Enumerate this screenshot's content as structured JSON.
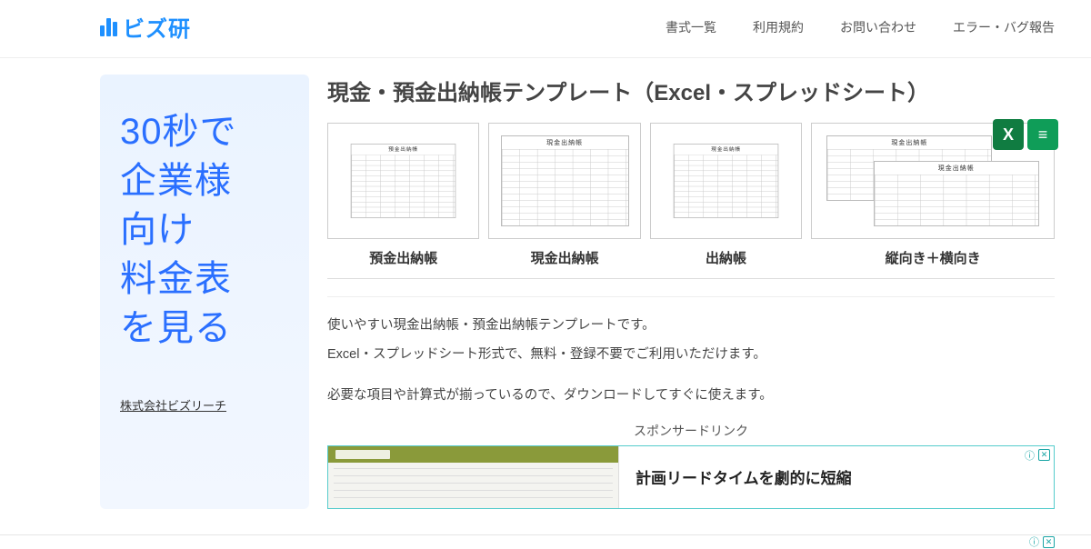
{
  "header": {
    "logo_text": "ビズ研",
    "nav": [
      "書式一覧",
      "利用規約",
      "お問い合わせ",
      "エラー・バグ報告"
    ]
  },
  "sidebar": {
    "promo_lines": [
      "30秒で",
      "企業様",
      "向け",
      "料金表",
      "を見る"
    ],
    "company": "株式会社ビズリーチ"
  },
  "main": {
    "title": "現金・預金出納帳テンプレート（Excel・スプレッドシート）",
    "templates": [
      {
        "label": "預金出納帳",
        "sheet_title": "預金出納帳"
      },
      {
        "label": "現金出納帳",
        "sheet_title": "現金出納帳"
      },
      {
        "label": "出納帳",
        "sheet_title": "現金出納帳"
      },
      {
        "label": "縦向き＋横向き",
        "sheet_title": "現金出納帳"
      }
    ],
    "icons": {
      "excel": "X",
      "sheets": "≡"
    },
    "desc": {
      "p1": "使いやすい現金出納帳・預金出納帳テンプレートです。",
      "p2": "Excel・スプレッドシート形式で、無料・登録不要でご利用いただけます。",
      "p3": "必要な項目や計算式が揃っているので、ダウンロードしてすぐに使えます。"
    },
    "sponsor_label": "スポンサードリンク",
    "ad": {
      "headline": "計画リードタイムを劇的に短縮",
      "info": "ⓘ",
      "close": "✕"
    }
  }
}
